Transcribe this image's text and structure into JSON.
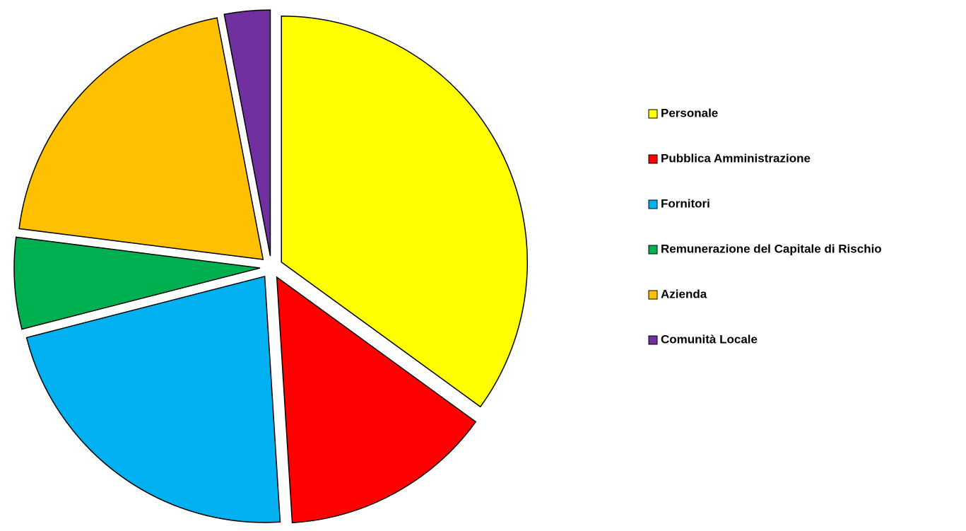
{
  "chart_data": {
    "type": "pie",
    "categories": [
      "Personale",
      "Pubblica Amministrazione",
      "Fornitori",
      "Remunerazione del Capitale di Rischio",
      "Azienda",
      "Comunità Locale"
    ],
    "values": [
      35,
      14,
      22,
      6,
      20,
      3
    ],
    "colors": [
      "#ffff00",
      "#ff0000",
      "#00b0f0",
      "#00b050",
      "#ffc000",
      "#7030a0"
    ],
    "legend": "right"
  }
}
